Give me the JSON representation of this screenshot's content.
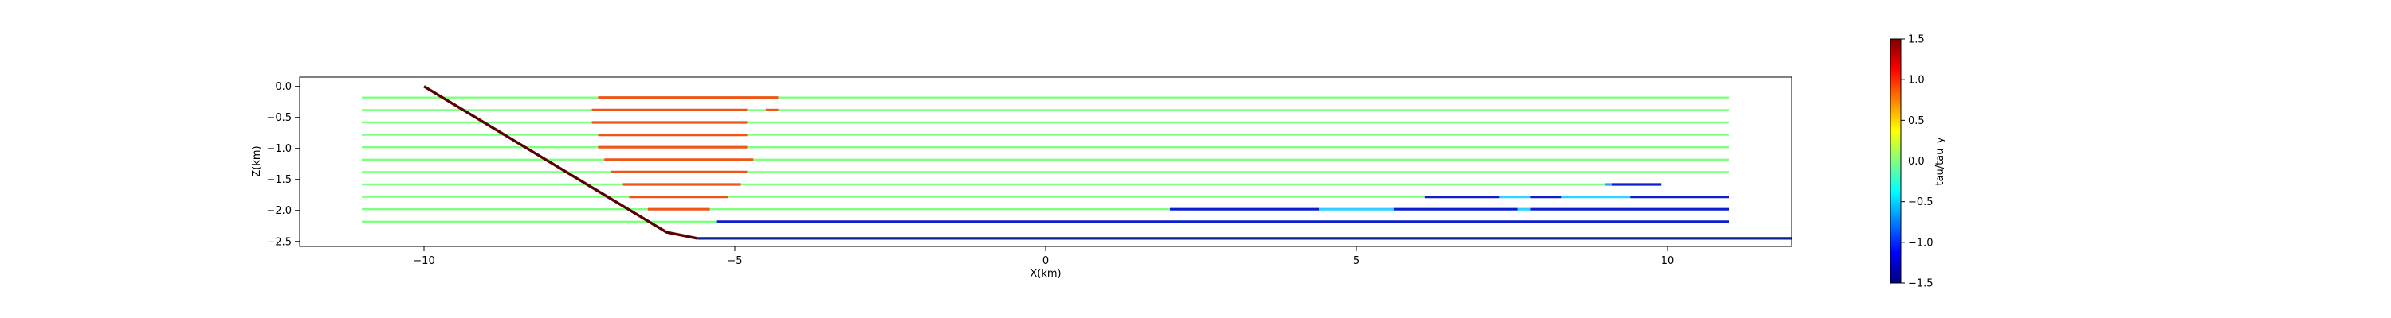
{
  "chart_data": {
    "type": "line",
    "xlabel": "X(km)",
    "ylabel": "Z(km)",
    "xlim": [
      -12.0,
      12.0
    ],
    "ylim": [
      -2.58,
      0.15
    ],
    "x_ticks": [
      -10,
      -5,
      0,
      5,
      10
    ],
    "x_tick_labels": [
      "−10",
      "−5",
      "0",
      "5",
      "10"
    ],
    "y_ticks": [
      0.0,
      -0.5,
      -1.0,
      -1.5,
      -2.0,
      -2.5
    ],
    "y_tick_labels": [
      "0.0",
      "−0.5",
      "−1.0",
      "−1.5",
      "−2.0",
      "−2.5"
    ],
    "grid": false,
    "fault": {
      "color": "#5a0000",
      "points": [
        [
          -10.0,
          0.0
        ],
        [
          -6.1,
          -2.35
        ],
        [
          -5.6,
          -2.45
        ]
      ]
    },
    "basal_detachment": {
      "color": "#0b1f8f",
      "points": [
        [
          -5.6,
          -2.45
        ],
        [
          12.0,
          -2.45
        ]
      ]
    },
    "background_color": "#80ff80",
    "series": [
      {
        "y": -0.18,
        "segments": [
          {
            "x": [
              -11.0,
              -7.2
            ],
            "color": "#80ff80"
          },
          {
            "x": [
              -7.2,
              -4.3
            ],
            "color": "#ee5517"
          },
          {
            "x": [
              -4.3,
              11.0
            ],
            "color": "#80ff80"
          }
        ]
      },
      {
        "y": -0.38,
        "segments": [
          {
            "x": [
              -11.0,
              -7.3
            ],
            "color": "#80ff80"
          },
          {
            "x": [
              -7.3,
              -4.8
            ],
            "color": "#ee5517"
          },
          {
            "x": [
              -4.8,
              -4.5
            ],
            "color": "#80ff80"
          },
          {
            "x": [
              -4.5,
              -4.3
            ],
            "color": "#ee5517"
          },
          {
            "x": [
              -4.3,
              11.0
            ],
            "color": "#80ff80"
          }
        ]
      },
      {
        "y": -0.58,
        "segments": [
          {
            "x": [
              -11.0,
              -7.3
            ],
            "color": "#80ff80"
          },
          {
            "x": [
              -7.3,
              -4.8
            ],
            "color": "#ee5517"
          },
          {
            "x": [
              -4.8,
              11.0
            ],
            "color": "#80ff80"
          }
        ]
      },
      {
        "y": -0.78,
        "segments": [
          {
            "x": [
              -11.0,
              -7.2
            ],
            "color": "#80ff80"
          },
          {
            "x": [
              -7.2,
              -4.8
            ],
            "color": "#ee5517"
          },
          {
            "x": [
              -4.8,
              11.0
            ],
            "color": "#80ff80"
          }
        ]
      },
      {
        "y": -0.98,
        "segments": [
          {
            "x": [
              -11.0,
              -7.2
            ],
            "color": "#80ff80"
          },
          {
            "x": [
              -7.2,
              -4.8
            ],
            "color": "#ee5517"
          },
          {
            "x": [
              -4.8,
              11.0
            ],
            "color": "#80ff80"
          }
        ]
      },
      {
        "y": -1.18,
        "segments": [
          {
            "x": [
              -11.0,
              -7.1
            ],
            "color": "#80ff80"
          },
          {
            "x": [
              -7.1,
              -4.7
            ],
            "color": "#ee5517"
          },
          {
            "x": [
              -4.7,
              11.0
            ],
            "color": "#80ff80"
          }
        ]
      },
      {
        "y": -1.38,
        "segments": [
          {
            "x": [
              -11.0,
              -7.0
            ],
            "color": "#80ff80"
          },
          {
            "x": [
              -7.0,
              -4.8
            ],
            "color": "#ee5517"
          },
          {
            "x": [
              -4.8,
              11.0
            ],
            "color": "#80ff80"
          }
        ]
      },
      {
        "y": -1.58,
        "segments": [
          {
            "x": [
              -11.0,
              -6.8
            ],
            "color": "#80ff80"
          },
          {
            "x": [
              -6.8,
              -4.9
            ],
            "color": "#ee5517"
          },
          {
            "x": [
              -4.9,
              9.0
            ],
            "color": "#80ff80"
          },
          {
            "x": [
              9.0,
              9.1
            ],
            "color": "#2a9fff"
          },
          {
            "x": [
              9.1,
              9.9
            ],
            "color": "#0b1fcf"
          }
        ]
      },
      {
        "y": -1.78,
        "segments": [
          {
            "x": [
              -11.0,
              -6.7
            ],
            "color": "#80ff80"
          },
          {
            "x": [
              -6.7,
              -5.1
            ],
            "color": "#ee5517"
          },
          {
            "x": [
              -5.1,
              6.1
            ],
            "color": "#80ff80"
          },
          {
            "x": [
              6.1,
              7.3
            ],
            "color": "#0b1fcf"
          },
          {
            "x": [
              7.3,
              7.8
            ],
            "color": "#30d0ff"
          },
          {
            "x": [
              7.8,
              8.3
            ],
            "color": "#0b1fcf"
          },
          {
            "x": [
              8.3,
              9.4
            ],
            "color": "#30d0ff"
          },
          {
            "x": [
              9.4,
              11.0
            ],
            "color": "#0b1fcf"
          }
        ]
      },
      {
        "y": -1.98,
        "segments": [
          {
            "x": [
              -11.0,
              -6.4
            ],
            "color": "#80ff80"
          },
          {
            "x": [
              -6.4,
              -5.4
            ],
            "color": "#ee5517"
          },
          {
            "x": [
              -5.4,
              2.0
            ],
            "color": "#80ff80"
          },
          {
            "x": [
              2.0,
              4.4
            ],
            "color": "#0b1fcf"
          },
          {
            "x": [
              4.4,
              5.6
            ],
            "color": "#30d0ff"
          },
          {
            "x": [
              5.6,
              7.6
            ],
            "color": "#0b1fcf"
          },
          {
            "x": [
              7.6,
              7.8
            ],
            "color": "#30d0ff"
          },
          {
            "x": [
              7.8,
              11.0
            ],
            "color": "#0b1fcf"
          }
        ]
      },
      {
        "y": -2.18,
        "segments": [
          {
            "x": [
              -11.0,
              -5.3
            ],
            "color": "#80ff80"
          },
          {
            "x": [
              -5.3,
              11.0
            ],
            "color": "#0b1fcf"
          }
        ]
      }
    ],
    "colorbar": {
      "label": "tau/tau_y",
      "range": [
        -1.5,
        1.5
      ],
      "ticks": [
        1.5,
        1.0,
        0.5,
        0.0,
        -0.5,
        -1.0,
        -1.5
      ],
      "tick_labels": [
        "1.5",
        "1.0",
        "0.5",
        "0.0",
        "−0.5",
        "−1.0",
        "−1.5"
      ],
      "colormap": "jet",
      "stops": [
        "#00007f",
        "#0000ff",
        "#007fff",
        "#00ffff",
        "#7fff7f",
        "#ffff00",
        "#ff7f00",
        "#ff0000",
        "#7f0000"
      ]
    }
  }
}
